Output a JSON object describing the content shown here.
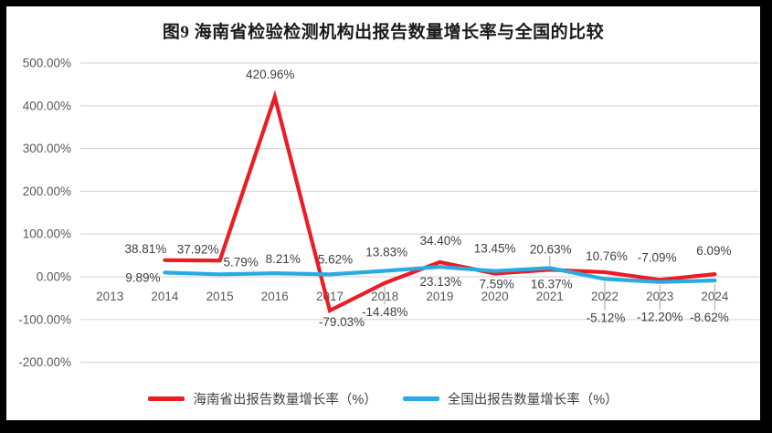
{
  "title": "图9 海南省检验检测机构出报告数量增长率与全国的比较",
  "colors": {
    "hainan_line": "#ec1c24",
    "national_line": "#29abe2",
    "gridline": "#d9d9d9",
    "axis_text": "#595959",
    "data_label_text": "#3f3f3f",
    "leader_line": "#a6a6a6",
    "frame": "#000000",
    "background": "#ffffff"
  },
  "chart_data": {
    "type": "line",
    "title": "图9 海南省检验检测机构出报告数量增长率与全国的比较",
    "categories": [
      "2013",
      "2014",
      "2015",
      "2016",
      "2017",
      "2018",
      "2019",
      "2020",
      "2021",
      "2022",
      "2023",
      "2024"
    ],
    "y_axis": {
      "ticks": [
        "500.00%",
        "400.00%",
        "300.00%",
        "200.00%",
        "100.00%",
        "0.00%",
        "-100.00%",
        "-200.00%"
      ],
      "tick_values": [
        500,
        400,
        300,
        200,
        100,
        0,
        -100,
        -200
      ],
      "min": -200,
      "max": 500,
      "unit": "%"
    },
    "grid": true,
    "legend_position": "bottom",
    "series": [
      {
        "name": "海南省出报告数量增长率（%）",
        "color": "#ec1c24",
        "values": [
          null,
          38.81,
          37.92,
          420.96,
          -79.03,
          -14.48,
          34.4,
          7.59,
          16.37,
          10.76,
          -7.09,
          6.09
        ],
        "labels": [
          null,
          "38.81%",
          "37.92%",
          "420.96%",
          "-79.03%",
          "-14.48%",
          "34.40%",
          "7.59%",
          "16.37%",
          "10.76%",
          "-7.09%",
          "6.09%"
        ],
        "label_pos": [
          null,
          "above",
          "above",
          "above",
          "below",
          "below",
          "above",
          "below",
          "below",
          "above",
          "above",
          "above"
        ],
        "label_dx": [
          0,
          -21,
          -24,
          -5,
          13,
          0,
          1,
          2,
          2,
          2,
          -3,
          -1
        ],
        "label_dy": [
          0,
          -1,
          -1,
          -13,
          0,
          19,
          -12,
          -1,
          3,
          -6,
          -13,
          -14
        ],
        "label_leader": [
          false,
          false,
          false,
          false,
          false,
          true,
          false,
          false,
          false,
          false,
          false,
          false
        ]
      },
      {
        "name": "全国出报告数量增长率（%）",
        "color": "#29abe2",
        "values": [
          null,
          9.89,
          5.79,
          8.21,
          5.62,
          13.83,
          23.13,
          13.45,
          20.63,
          -5.12,
          -12.2,
          -8.62
        ],
        "labels": [
          null,
          "9.89%",
          "5.79%",
          "8.21%",
          "5.62%",
          "13.83%",
          "23.13%",
          "13.45%",
          "20.63%",
          "-5.12%",
          "-12.20%",
          "-8.62%"
        ],
        "label_pos": [
          null,
          "below",
          "above",
          "above",
          "above",
          "above",
          "below",
          "above",
          "above",
          "below",
          "below",
          "below"
        ],
        "label_dx": [
          0,
          -24,
          23,
          9,
          6,
          2,
          1,
          0,
          1,
          1,
          0,
          -6
        ],
        "label_dy": [
          0,
          -7,
          -2,
          -4,
          -5,
          -9,
          4,
          -13,
          -9,
          30,
          26,
          28
        ],
        "label_leader": [
          false,
          false,
          false,
          false,
          false,
          false,
          false,
          false,
          true,
          true,
          true,
          true
        ]
      }
    ]
  },
  "legend": {
    "items": [
      {
        "label": "海南省出报告数量增长率（%）",
        "color": "#ec1c24"
      },
      {
        "label": "全国出报告数量增长率（%）",
        "color": "#29abe2"
      }
    ]
  }
}
